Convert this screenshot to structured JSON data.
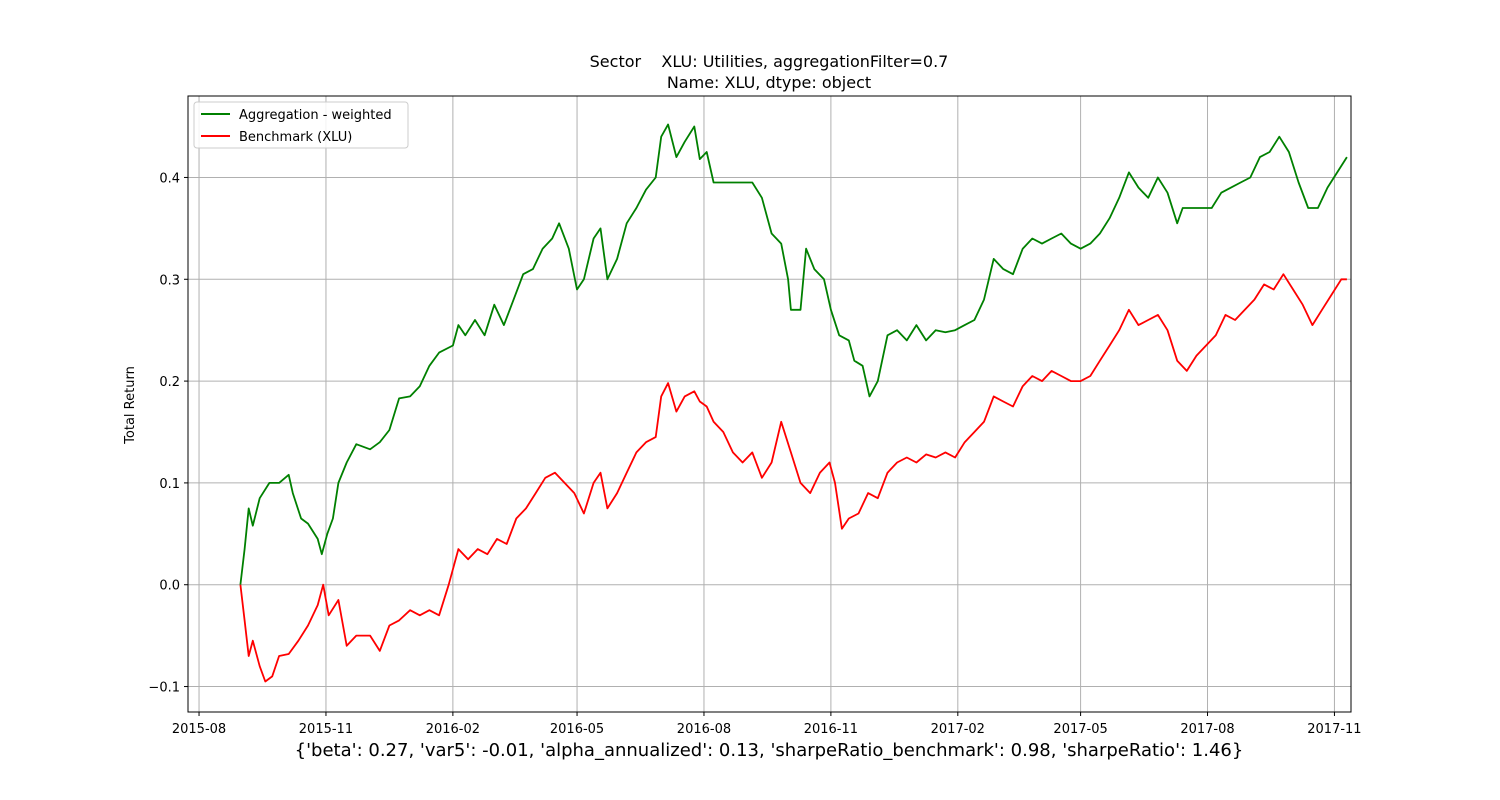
{
  "chart_data": {
    "type": "line",
    "title_line1": "Sector    XLU: Utilities, aggregationFilter=0.7",
    "title_line2": "Name: XLU, dtype: object",
    "xlabel": "",
    "ylabel": "Total Return",
    "x_ticks": [
      "2015-08",
      "2015-11",
      "2016-02",
      "2016-05",
      "2016-08",
      "2016-11",
      "2017-02",
      "2017-05",
      "2017-08",
      "2017-11"
    ],
    "y_ticks": [
      -0.1,
      0.0,
      0.1,
      0.2,
      0.3,
      0.4
    ],
    "xlim": [
      "2015-07-24",
      "2017-11-13"
    ],
    "ylim": [
      -0.125,
      0.48
    ],
    "grid": true,
    "legend_position": "top-left",
    "footer_stats": "{'beta': 0.27, 'var5': -0.01, 'alpha_annualized': 0.13, 'sharpeRatio_benchmark': 0.98, 'sharpeRatio': 1.46}",
    "series": [
      {
        "name": "Aggregation - weighted",
        "color": "#008000",
        "points": [
          [
            "2015-08-31",
            0.0
          ],
          [
            "2015-09-03",
            0.035
          ],
          [
            "2015-09-06",
            0.075
          ],
          [
            "2015-09-09",
            0.058
          ],
          [
            "2015-09-14",
            0.085
          ],
          [
            "2015-09-21",
            0.1
          ],
          [
            "2015-09-28",
            0.1
          ],
          [
            "2015-10-05",
            0.108
          ],
          [
            "2015-10-08",
            0.09
          ],
          [
            "2015-10-14",
            0.065
          ],
          [
            "2015-10-19",
            0.06
          ],
          [
            "2015-10-26",
            0.045
          ],
          [
            "2015-10-29",
            0.03
          ],
          [
            "2015-11-02",
            0.05
          ],
          [
            "2015-11-06",
            0.065
          ],
          [
            "2015-11-10",
            0.1
          ],
          [
            "2015-11-16",
            0.12
          ],
          [
            "2015-11-23",
            0.138
          ],
          [
            "2015-12-03",
            0.133
          ],
          [
            "2015-12-10",
            0.14
          ],
          [
            "2015-12-17",
            0.152
          ],
          [
            "2015-12-24",
            0.183
          ],
          [
            "2016-01-01",
            0.185
          ],
          [
            "2016-01-08",
            0.195
          ],
          [
            "2016-01-15",
            0.215
          ],
          [
            "2016-01-22",
            0.228
          ],
          [
            "2016-02-01",
            0.235
          ],
          [
            "2016-02-05",
            0.255
          ],
          [
            "2016-02-10",
            0.245
          ],
          [
            "2016-02-17",
            0.26
          ],
          [
            "2016-02-24",
            0.245
          ],
          [
            "2016-03-02",
            0.275
          ],
          [
            "2016-03-09",
            0.255
          ],
          [
            "2016-03-16",
            0.28
          ],
          [
            "2016-03-23",
            0.305
          ],
          [
            "2016-03-30",
            0.31
          ],
          [
            "2016-04-06",
            0.33
          ],
          [
            "2016-04-13",
            0.34
          ],
          [
            "2016-04-18",
            0.355
          ],
          [
            "2016-04-25",
            0.33
          ],
          [
            "2016-05-01",
            0.29
          ],
          [
            "2016-05-06",
            0.3
          ],
          [
            "2016-05-13",
            0.34
          ],
          [
            "2016-05-18",
            0.35
          ],
          [
            "2016-05-23",
            0.3
          ],
          [
            "2016-05-30",
            0.32
          ],
          [
            "2016-06-06",
            0.355
          ],
          [
            "2016-06-13",
            0.37
          ],
          [
            "2016-06-20",
            0.388
          ],
          [
            "2016-06-27",
            0.4
          ],
          [
            "2016-07-01",
            0.44
          ],
          [
            "2016-07-06",
            0.452
          ],
          [
            "2016-07-12",
            0.42
          ],
          [
            "2016-07-18",
            0.435
          ],
          [
            "2016-07-25",
            0.45
          ],
          [
            "2016-07-29",
            0.418
          ],
          [
            "2016-08-03",
            0.425
          ],
          [
            "2016-08-08",
            0.395
          ],
          [
            "2016-08-22",
            0.395
          ],
          [
            "2016-09-05",
            0.395
          ],
          [
            "2016-09-12",
            0.38
          ],
          [
            "2016-09-19",
            0.345
          ],
          [
            "2016-09-26",
            0.335
          ],
          [
            "2016-10-01",
            0.3
          ],
          [
            "2016-10-03",
            0.27
          ],
          [
            "2016-10-10",
            0.27
          ],
          [
            "2016-10-14",
            0.33
          ],
          [
            "2016-10-20",
            0.31
          ],
          [
            "2016-10-27",
            0.3
          ],
          [
            "2016-11-01",
            0.27
          ],
          [
            "2016-11-07",
            0.245
          ],
          [
            "2016-11-14",
            0.24
          ],
          [
            "2016-11-18",
            0.22
          ],
          [
            "2016-11-24",
            0.215
          ],
          [
            "2016-11-29",
            0.185
          ],
          [
            "2016-12-05",
            0.2
          ],
          [
            "2016-12-12",
            0.245
          ],
          [
            "2016-12-19",
            0.25
          ],
          [
            "2016-12-26",
            0.24
          ],
          [
            "2017-01-02",
            0.255
          ],
          [
            "2017-01-09",
            0.24
          ],
          [
            "2017-01-16",
            0.25
          ],
          [
            "2017-01-23",
            0.248
          ],
          [
            "2017-01-30",
            0.25
          ],
          [
            "2017-02-06",
            0.255
          ],
          [
            "2017-02-13",
            0.26
          ],
          [
            "2017-02-20",
            0.28
          ],
          [
            "2017-02-27",
            0.32
          ],
          [
            "2017-03-06",
            0.31
          ],
          [
            "2017-03-13",
            0.305
          ],
          [
            "2017-03-20",
            0.33
          ],
          [
            "2017-03-27",
            0.34
          ],
          [
            "2017-04-03",
            0.335
          ],
          [
            "2017-04-10",
            0.34
          ],
          [
            "2017-04-17",
            0.345
          ],
          [
            "2017-04-24",
            0.335
          ],
          [
            "2017-05-01",
            0.33
          ],
          [
            "2017-05-08",
            0.335
          ],
          [
            "2017-05-15",
            0.345
          ],
          [
            "2017-05-22",
            0.36
          ],
          [
            "2017-05-29",
            0.38
          ],
          [
            "2017-06-05",
            0.405
          ],
          [
            "2017-06-12",
            0.39
          ],
          [
            "2017-06-19",
            0.38
          ],
          [
            "2017-06-26",
            0.4
          ],
          [
            "2017-07-03",
            0.385
          ],
          [
            "2017-07-10",
            0.355
          ],
          [
            "2017-07-14",
            0.37
          ],
          [
            "2017-07-21",
            0.37
          ],
          [
            "2017-07-28",
            0.37
          ],
          [
            "2017-08-04",
            0.37
          ],
          [
            "2017-08-11",
            0.385
          ],
          [
            "2017-08-18",
            0.39
          ],
          [
            "2017-08-25",
            0.395
          ],
          [
            "2017-09-01",
            0.4
          ],
          [
            "2017-09-08",
            0.42
          ],
          [
            "2017-09-15",
            0.425
          ],
          [
            "2017-09-22",
            0.44
          ],
          [
            "2017-09-29",
            0.425
          ],
          [
            "2017-10-06",
            0.395
          ],
          [
            "2017-10-13",
            0.37
          ],
          [
            "2017-10-20",
            0.37
          ],
          [
            "2017-10-27",
            0.39
          ],
          [
            "2017-11-03",
            0.405
          ],
          [
            "2017-11-10",
            0.42
          ]
        ]
      },
      {
        "name": "Benchmark (XLU)",
        "color": "#ff0000",
        "points": [
          [
            "2015-08-31",
            0.0
          ],
          [
            "2015-09-03",
            -0.035
          ],
          [
            "2015-09-06",
            -0.07
          ],
          [
            "2015-09-09",
            -0.055
          ],
          [
            "2015-09-14",
            -0.08
          ],
          [
            "2015-09-18",
            -0.095
          ],
          [
            "2015-09-23",
            -0.09
          ],
          [
            "2015-09-28",
            -0.07
          ],
          [
            "2015-10-05",
            -0.068
          ],
          [
            "2015-10-12",
            -0.055
          ],
          [
            "2015-10-19",
            -0.04
          ],
          [
            "2015-10-26",
            -0.02
          ],
          [
            "2015-10-30",
            0.0
          ],
          [
            "2015-11-03",
            -0.03
          ],
          [
            "2015-11-10",
            -0.015
          ],
          [
            "2015-11-16",
            -0.06
          ],
          [
            "2015-11-23",
            -0.05
          ],
          [
            "2015-12-03",
            -0.05
          ],
          [
            "2015-12-10",
            -0.065
          ],
          [
            "2015-12-17",
            -0.04
          ],
          [
            "2015-12-24",
            -0.035
          ],
          [
            "2016-01-01",
            -0.025
          ],
          [
            "2016-01-08",
            -0.03
          ],
          [
            "2016-01-15",
            -0.025
          ],
          [
            "2016-01-22",
            -0.03
          ],
          [
            "2016-01-29",
            0.0
          ],
          [
            "2016-02-05",
            0.035
          ],
          [
            "2016-02-12",
            0.025
          ],
          [
            "2016-02-19",
            0.035
          ],
          [
            "2016-02-26",
            0.03
          ],
          [
            "2016-03-04",
            0.045
          ],
          [
            "2016-03-11",
            0.04
          ],
          [
            "2016-03-18",
            0.065
          ],
          [
            "2016-03-25",
            0.075
          ],
          [
            "2016-04-01",
            0.09
          ],
          [
            "2016-04-08",
            0.105
          ],
          [
            "2016-04-15",
            0.11
          ],
          [
            "2016-04-22",
            0.1
          ],
          [
            "2016-04-29",
            0.09
          ],
          [
            "2016-05-06",
            0.07
          ],
          [
            "2016-05-13",
            0.1
          ],
          [
            "2016-05-18",
            0.11
          ],
          [
            "2016-05-23",
            0.075
          ],
          [
            "2016-05-30",
            0.09
          ],
          [
            "2016-06-06",
            0.11
          ],
          [
            "2016-06-13",
            0.13
          ],
          [
            "2016-06-20",
            0.14
          ],
          [
            "2016-06-27",
            0.145
          ],
          [
            "2016-07-01",
            0.185
          ],
          [
            "2016-07-06",
            0.198
          ],
          [
            "2016-07-12",
            0.17
          ],
          [
            "2016-07-18",
            0.185
          ],
          [
            "2016-07-25",
            0.19
          ],
          [
            "2016-07-29",
            0.18
          ],
          [
            "2016-08-03",
            0.175
          ],
          [
            "2016-08-08",
            0.16
          ],
          [
            "2016-08-15",
            0.15
          ],
          [
            "2016-08-22",
            0.13
          ],
          [
            "2016-08-29",
            0.12
          ],
          [
            "2016-09-05",
            0.13
          ],
          [
            "2016-09-12",
            0.105
          ],
          [
            "2016-09-19",
            0.12
          ],
          [
            "2016-09-26",
            0.16
          ],
          [
            "2016-10-03",
            0.13
          ],
          [
            "2016-10-10",
            0.1
          ],
          [
            "2016-10-17",
            0.09
          ],
          [
            "2016-10-24",
            0.11
          ],
          [
            "2016-10-31",
            0.12
          ],
          [
            "2016-11-04",
            0.1
          ],
          [
            "2016-11-09",
            0.055
          ],
          [
            "2016-11-14",
            0.065
          ],
          [
            "2016-11-21",
            0.07
          ],
          [
            "2016-11-28",
            0.09
          ],
          [
            "2016-12-05",
            0.085
          ],
          [
            "2016-12-12",
            0.11
          ],
          [
            "2016-12-19",
            0.12
          ],
          [
            "2016-12-26",
            0.125
          ],
          [
            "2017-01-02",
            0.12
          ],
          [
            "2017-01-09",
            0.128
          ],
          [
            "2017-01-16",
            0.125
          ],
          [
            "2017-01-23",
            0.13
          ],
          [
            "2017-01-30",
            0.125
          ],
          [
            "2017-02-06",
            0.14
          ],
          [
            "2017-02-13",
            0.15
          ],
          [
            "2017-02-20",
            0.16
          ],
          [
            "2017-02-27",
            0.185
          ],
          [
            "2017-03-06",
            0.18
          ],
          [
            "2017-03-13",
            0.175
          ],
          [
            "2017-03-20",
            0.195
          ],
          [
            "2017-03-27",
            0.205
          ],
          [
            "2017-04-03",
            0.2
          ],
          [
            "2017-04-10",
            0.21
          ],
          [
            "2017-04-17",
            0.205
          ],
          [
            "2017-04-24",
            0.2
          ],
          [
            "2017-05-01",
            0.2
          ],
          [
            "2017-05-08",
            0.205
          ],
          [
            "2017-05-15",
            0.22
          ],
          [
            "2017-05-22",
            0.235
          ],
          [
            "2017-05-29",
            0.25
          ],
          [
            "2017-06-05",
            0.27
          ],
          [
            "2017-06-12",
            0.255
          ],
          [
            "2017-06-19",
            0.26
          ],
          [
            "2017-06-26",
            0.265
          ],
          [
            "2017-07-03",
            0.25
          ],
          [
            "2017-07-10",
            0.22
          ],
          [
            "2017-07-17",
            0.21
          ],
          [
            "2017-07-24",
            0.225
          ],
          [
            "2017-07-31",
            0.235
          ],
          [
            "2017-08-07",
            0.245
          ],
          [
            "2017-08-14",
            0.265
          ],
          [
            "2017-08-21",
            0.26
          ],
          [
            "2017-08-28",
            0.27
          ],
          [
            "2017-09-04",
            0.28
          ],
          [
            "2017-09-11",
            0.295
          ],
          [
            "2017-09-18",
            0.29
          ],
          [
            "2017-09-25",
            0.305
          ],
          [
            "2017-10-02",
            0.29
          ],
          [
            "2017-10-09",
            0.275
          ],
          [
            "2017-10-16",
            0.255
          ],
          [
            "2017-10-23",
            0.27
          ],
          [
            "2017-10-30",
            0.285
          ],
          [
            "2017-11-06",
            0.3
          ],
          [
            "2017-11-10",
            0.3
          ]
        ]
      }
    ]
  }
}
